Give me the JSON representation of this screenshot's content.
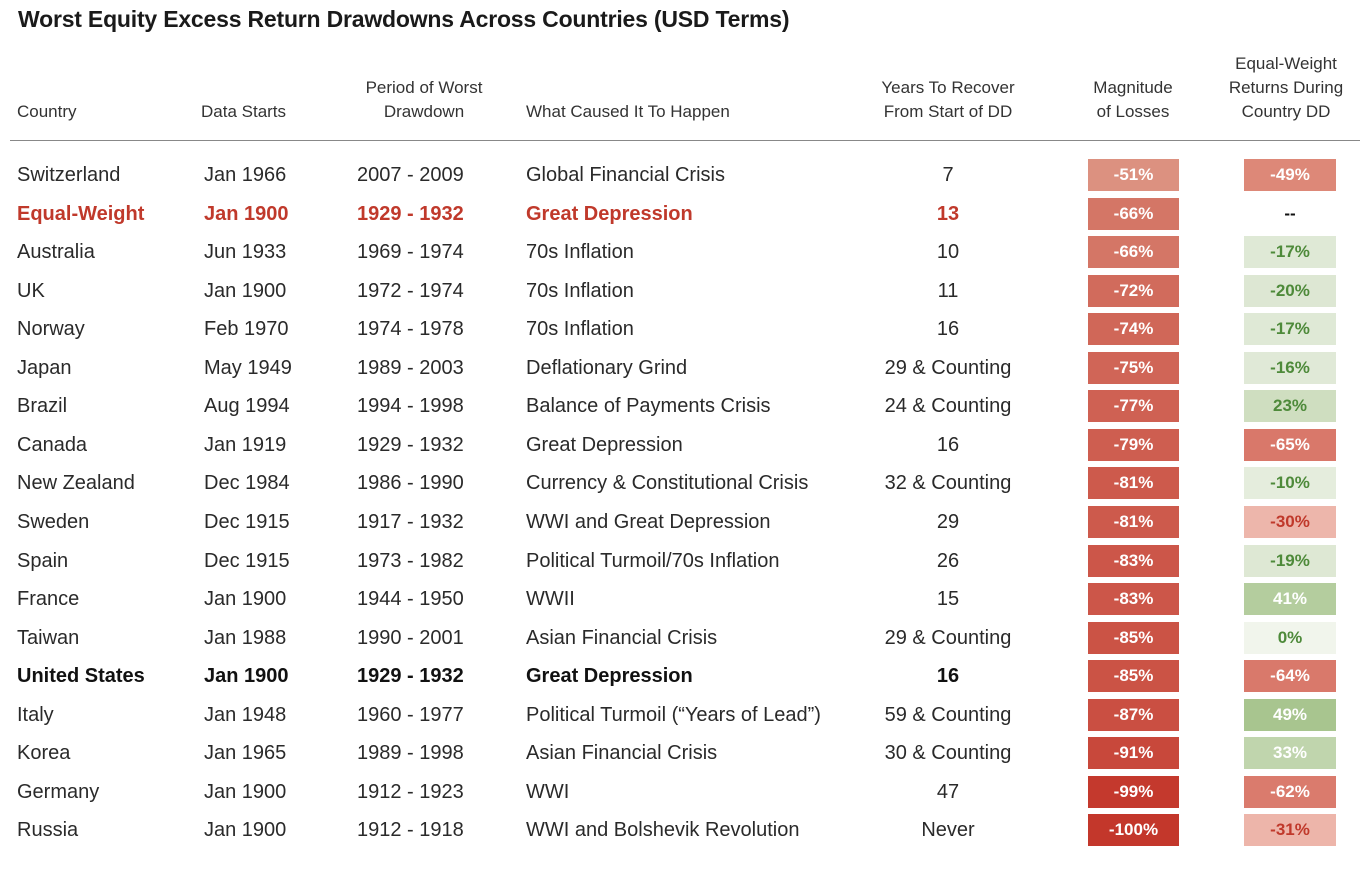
{
  "chart_data": {
    "type": "table",
    "title": "Worst Equity Excess Return Drawdowns Across Countries (USD Terms)",
    "columns": [
      "Country",
      "Data Starts",
      "Period of Worst\nDrawdown",
      "What Caused It To Happen",
      "Years To Recover\nFrom Start of DD",
      "Magnitude\nof Losses",
      "Equal-Weight\nReturns During\nCountry DD"
    ],
    "rows": [
      {
        "country": "Switzerland",
        "start": "Jan 1966",
        "period": "2007 - 2009",
        "cause": "Global Financial Crisis",
        "recover": "7",
        "loss": "-51%",
        "ew": "-49%",
        "style": "normal"
      },
      {
        "country": "Equal-Weight",
        "start": "Jan 1900",
        "period": "1929 - 1932",
        "cause": "Great Depression",
        "recover": "13",
        "loss": "-66%",
        "ew": "--",
        "style": "red"
      },
      {
        "country": "Australia",
        "start": "Jun 1933",
        "period": "1969 - 1974",
        "cause": "70s Inflation",
        "recover": "10",
        "loss": "-66%",
        "ew": "-17%",
        "style": "normal"
      },
      {
        "country": "UK",
        "start": "Jan 1900",
        "period": "1972 - 1974",
        "cause": "70s Inflation",
        "recover": "11",
        "loss": "-72%",
        "ew": "-20%",
        "style": "normal"
      },
      {
        "country": "Norway",
        "start": "Feb 1970",
        "period": "1974 - 1978",
        "cause": "70s Inflation",
        "recover": "16",
        "loss": "-74%",
        "ew": "-17%",
        "style": "normal"
      },
      {
        "country": "Japan",
        "start": "May 1949",
        "period": "1989 - 2003",
        "cause": "Deflationary Grind",
        "recover": "29 & Counting",
        "loss": "-75%",
        "ew": "-16%",
        "style": "normal"
      },
      {
        "country": "Brazil",
        "start": "Aug 1994",
        "period": "1994 - 1998",
        "cause": "Balance of Payments Crisis",
        "recover": "24 & Counting",
        "loss": "-77%",
        "ew": "23%",
        "style": "normal"
      },
      {
        "country": "Canada",
        "start": "Jan 1919",
        "period": "1929 - 1932",
        "cause": "Great Depression",
        "recover": "16",
        "loss": "-79%",
        "ew": "-65%",
        "style": "normal"
      },
      {
        "country": "New Zealand",
        "start": "Dec 1984",
        "period": "1986 - 1990",
        "cause": "Currency & Constitutional Crisis",
        "recover": "32 & Counting",
        "loss": "-81%",
        "ew": "-10%",
        "style": "normal"
      },
      {
        "country": "Sweden",
        "start": "Dec 1915",
        "period": "1917 - 1932",
        "cause": "WWI and Great Depression",
        "recover": "29",
        "loss": "-81%",
        "ew": "-30%",
        "style": "normal"
      },
      {
        "country": "Spain",
        "start": "Dec 1915",
        "period": "1973 - 1982",
        "cause": "Political Turmoil/70s Inflation",
        "recover": "26",
        "loss": "-83%",
        "ew": "-19%",
        "style": "normal"
      },
      {
        "country": "France",
        "start": "Jan 1900",
        "period": "1944 - 1950",
        "cause": "WWII",
        "recover": "15",
        "loss": "-83%",
        "ew": "41%",
        "style": "normal"
      },
      {
        "country": "Taiwan",
        "start": "Jan 1988",
        "period": "1990 - 2001",
        "cause": "Asian Financial Crisis",
        "recover": "29 & Counting",
        "loss": "-85%",
        "ew": "0%",
        "style": "normal"
      },
      {
        "country": "United States",
        "start": "Jan 1900",
        "period": "1929 - 1932",
        "cause": "Great Depression",
        "recover": "16",
        "loss": "-85%",
        "ew": "-64%",
        "style": "bold"
      },
      {
        "country": "Italy",
        "start": "Jan 1948",
        "period": "1960 - 1977",
        "cause": "Political Turmoil (“Years of Lead”)",
        "recover": "59 & Counting",
        "loss": "-87%",
        "ew": "49%",
        "style": "normal"
      },
      {
        "country": "Korea",
        "start": "Jan 1965",
        "period": "1989 - 1998",
        "cause": "Asian Financial Crisis",
        "recover": "30 & Counting",
        "loss": "-91%",
        "ew": "33%",
        "style": "normal"
      },
      {
        "country": "Germany",
        "start": "Jan 1900",
        "period": "1912 - 1923",
        "cause": "WWI",
        "recover": "47",
        "loss": "-99%",
        "ew": "-62%",
        "style": "normal"
      },
      {
        "country": "Russia",
        "start": "Jan 1900",
        "period": "1912 - 1918",
        "cause": "WWI and Bolshevik Revolution",
        "recover": "Never",
        "loss": "-100%",
        "ew": "-31%",
        "style": "normal"
      }
    ],
    "colors": {
      "highlight_text": "#c0392b",
      "negative_strong": "#c0392b",
      "negative_light": "#f6e0dc",
      "positive_strong": "#9bbf7e",
      "positive_light": "#eef3e8",
      "positive_text": "#4e8a3a",
      "negative_light_text": "#c0392b"
    }
  }
}
